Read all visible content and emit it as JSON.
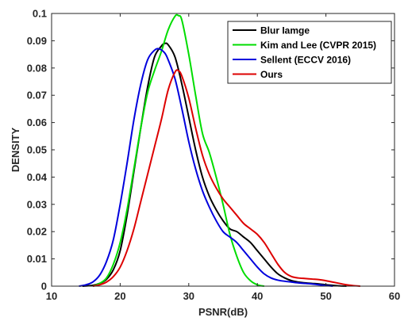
{
  "chart_data": {
    "type": "line",
    "xlabel": "PSNR(dB)",
    "ylabel": "DENSITY",
    "xlim": [
      10,
      60
    ],
    "ylim": [
      0,
      0.1
    ],
    "xticks": [
      10,
      20,
      30,
      40,
      50,
      60
    ],
    "yticks": [
      0,
      0.01,
      0.02,
      0.03,
      0.04,
      0.05,
      0.06,
      0.07,
      0.08,
      0.09,
      0.1
    ],
    "ytick_labels": [
      "0",
      "0.01",
      "0.02",
      "0.03",
      "0.04",
      "0.05",
      "0.06",
      "0.07",
      "0.08",
      "0.09",
      "0.1"
    ],
    "legend_position": "top-right",
    "grid": false,
    "series": [
      {
        "name": "Blur Iamge",
        "color": "#000000",
        "x": [
          14.5,
          16,
          17,
          18,
          19,
          20,
          21,
          22,
          23,
          24,
          25,
          26,
          26.5,
          27,
          28,
          29,
          30,
          31,
          32,
          33,
          34,
          35,
          36,
          37,
          38,
          39,
          40,
          41,
          42,
          43,
          44,
          45,
          46,
          47,
          48,
          49,
          50,
          51,
          52,
          53
        ],
        "y": [
          0.0,
          0.0003,
          0.001,
          0.0025,
          0.006,
          0.013,
          0.026,
          0.042,
          0.058,
          0.073,
          0.084,
          0.088,
          0.089,
          0.0885,
          0.084,
          0.074,
          0.062,
          0.05,
          0.04,
          0.033,
          0.028,
          0.024,
          0.021,
          0.02,
          0.018,
          0.016,
          0.013,
          0.01,
          0.007,
          0.0045,
          0.003,
          0.002,
          0.0015,
          0.0012,
          0.001,
          0.0008,
          0.0005,
          0.0003,
          0.0001,
          0.0
        ]
      },
      {
        "name": "Kim and Lee (CVPR 2015)",
        "color": "#00dd00",
        "x": [
          16,
          17,
          18,
          19,
          20,
          21,
          22,
          23,
          24,
          25,
          26,
          27,
          28,
          28.5,
          29,
          30,
          31,
          32,
          33,
          34,
          35,
          36,
          37,
          38,
          39,
          40,
          41
        ],
        "y": [
          0.0,
          0.001,
          0.003,
          0.008,
          0.016,
          0.028,
          0.043,
          0.058,
          0.071,
          0.079,
          0.086,
          0.094,
          0.099,
          0.0992,
          0.0975,
          0.085,
          0.07,
          0.056,
          0.049,
          0.04,
          0.03,
          0.019,
          0.011,
          0.005,
          0.002,
          0.0005,
          0.0
        ]
      },
      {
        "name": "Sellent (ECCV 2016)",
        "color": "#0000dd",
        "x": [
          14,
          15,
          16,
          17,
          18,
          19,
          20,
          21,
          22,
          23,
          24,
          25,
          25.7,
          26.5,
          27,
          28,
          29,
          30,
          31,
          32,
          33,
          34,
          35,
          36,
          37,
          38,
          39,
          40,
          41,
          42,
          43,
          44,
          45,
          46,
          47,
          48,
          49,
          50,
          51
        ],
        "y": [
          0.0,
          0.0005,
          0.0015,
          0.004,
          0.009,
          0.017,
          0.03,
          0.045,
          0.061,
          0.074,
          0.083,
          0.0865,
          0.087,
          0.0855,
          0.083,
          0.076,
          0.065,
          0.053,
          0.043,
          0.035,
          0.029,
          0.024,
          0.02,
          0.018,
          0.016,
          0.013,
          0.01,
          0.007,
          0.0045,
          0.003,
          0.0022,
          0.0018,
          0.0015,
          0.0012,
          0.001,
          0.0008,
          0.0005,
          0.0002,
          0.0
        ]
      },
      {
        "name": "Ours",
        "color": "#dd0000",
        "x": [
          16,
          17,
          18,
          19,
          20,
          21,
          22,
          23,
          24,
          25,
          26,
          27,
          28,
          28.5,
          29,
          30,
          31,
          32,
          33,
          34,
          35,
          36,
          37,
          38,
          39,
          40,
          41,
          42,
          43,
          44,
          45,
          46,
          47,
          48,
          49,
          50,
          51,
          52,
          53,
          54,
          55
        ],
        "y": [
          0.0,
          0.0005,
          0.0015,
          0.0035,
          0.007,
          0.013,
          0.021,
          0.031,
          0.041,
          0.051,
          0.061,
          0.072,
          0.0785,
          0.079,
          0.077,
          0.069,
          0.058,
          0.048,
          0.041,
          0.036,
          0.032,
          0.029,
          0.026,
          0.023,
          0.021,
          0.019,
          0.016,
          0.012,
          0.008,
          0.005,
          0.0035,
          0.003,
          0.0028,
          0.0026,
          0.0024,
          0.002,
          0.0015,
          0.001,
          0.0005,
          0.0002,
          0.0
        ]
      }
    ]
  }
}
